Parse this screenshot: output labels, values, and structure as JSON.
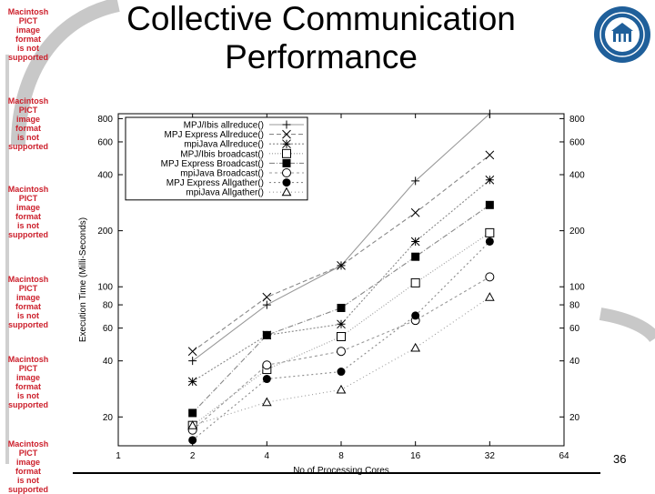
{
  "slide": {
    "title_line1": "Collective Communication",
    "title_line2": "Performance",
    "slide_number": "36",
    "pict_notice": [
      "Macintosh PICT",
      "image format",
      "is not supported"
    ]
  },
  "chart_data": {
    "type": "line",
    "xscale": "log2",
    "yscale": "log",
    "x": [
      2,
      4,
      8,
      16,
      32
    ],
    "xticks": [
      "1",
      "2",
      "4",
      "8",
      "16",
      "32",
      "64"
    ],
    "yticks": [
      "20",
      "40",
      "60",
      "80",
      "100",
      "200",
      "400",
      "600",
      "800"
    ],
    "xlim": [
      1,
      64
    ],
    "ylim": [
      14,
      850
    ],
    "xlabel": "No of Processing Cores",
    "ylabel": "Execution Time (Milli-Seconds)",
    "legend_position": "top-left",
    "series": [
      {
        "name": "MPJ/Ibis allreduce()",
        "marker": "plus",
        "dash": "",
        "color": "#999999",
        "values": [
          40,
          80,
          130,
          370,
          860
        ]
      },
      {
        "name": "MPJ Express Allreduce()",
        "marker": "x",
        "dash": "5,3",
        "color": "#888888",
        "values": [
          45,
          88,
          130,
          250,
          510
        ]
      },
      {
        "name": "mpiJava Allreduce()",
        "marker": "star",
        "dash": "2,2",
        "color": "#888888",
        "values": [
          31,
          55,
          63,
          175,
          375
        ]
      },
      {
        "name": "MPJ/Ibis broadcast()",
        "marker": "square-open",
        "dash": "1,2",
        "color": "#999999",
        "values": [
          18,
          36,
          54,
          105,
          195
        ]
      },
      {
        "name": "MPJ Express Broadcast()",
        "marker": "square-filled",
        "dash": "6,2,1,2",
        "color": "#888888",
        "values": [
          21,
          55,
          77,
          145,
          275
        ]
      },
      {
        "name": "mpiJava Broadcast()",
        "marker": "circle-open",
        "dash": "3,3",
        "color": "#999999",
        "values": [
          17,
          38,
          45,
          66,
          113
        ]
      },
      {
        "name": "MPJ Express Allgather()",
        "marker": "circle-filled",
        "dash": "2,3",
        "color": "#888888",
        "values": [
          15,
          32,
          35,
          70,
          175
        ]
      },
      {
        "name": "mpiJava Allgather()",
        "marker": "triangle-open",
        "dash": "1,3",
        "color": "#999999",
        "values": [
          18,
          24,
          28,
          47,
          88
        ]
      }
    ]
  }
}
